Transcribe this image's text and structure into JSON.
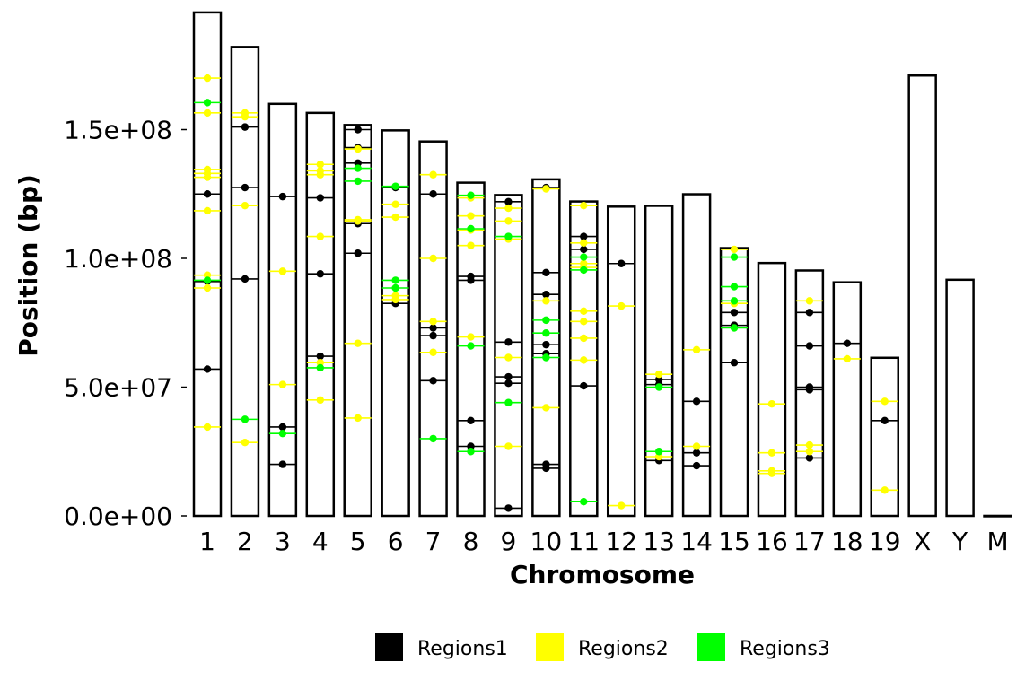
{
  "chart_data": {
    "type": "scatter",
    "xlabel": "Chromosome",
    "ylabel": "Position (bp)",
    "ylim": [
      0,
      195000000
    ],
    "yticks": [
      0,
      50000000,
      100000000,
      150000000
    ],
    "ytick_labels": [
      "0.0e+00",
      "5.0e+07",
      "1.0e+08",
      "1.5e+08"
    ],
    "categories": [
      "1",
      "2",
      "3",
      "4",
      "5",
      "6",
      "7",
      "8",
      "9",
      "10",
      "11",
      "12",
      "13",
      "14",
      "15",
      "16",
      "17",
      "18",
      "19",
      "X",
      "Y",
      "M"
    ],
    "chromosome_lengths": [
      195500000,
      182100000,
      160000000,
      156500000,
      151800000,
      149700000,
      145400000,
      129400000,
      124600000,
      130700000,
      122100000,
      120100000,
      120400000,
      124900000,
      104000000,
      98200000,
      95300000,
      90700000,
      61400000,
      171000000,
      91700000,
      16300
    ],
    "legend": {
      "position": "bottom",
      "entries": [
        "Regions1",
        "Regions2",
        "Regions3"
      ]
    },
    "grid": false,
    "series": [
      {
        "name": "Regions1",
        "color": "#000000",
        "points": [
          [
            "1",
            125000000
          ],
          [
            "1",
            57000000
          ],
          [
            "1",
            91000000
          ],
          [
            "2",
            151000000
          ],
          [
            "2",
            127500000
          ],
          [
            "2",
            92000000
          ],
          [
            "3",
            124000000
          ],
          [
            "3",
            34500000
          ],
          [
            "3",
            20000000
          ],
          [
            "4",
            123500000
          ],
          [
            "4",
            94000000
          ],
          [
            "4",
            62000000
          ],
          [
            "5",
            150000000
          ],
          [
            "5",
            143000000
          ],
          [
            "5",
            137000000
          ],
          [
            "5",
            113500000
          ],
          [
            "5",
            102000000
          ],
          [
            "6",
            127500000
          ],
          [
            "6",
            82500000
          ],
          [
            "7",
            125000000
          ],
          [
            "7",
            73000000
          ],
          [
            "7",
            70000000
          ],
          [
            "7",
            52500000
          ],
          [
            "8",
            93000000
          ],
          [
            "8",
            91500000
          ],
          [
            "8",
            37000000
          ],
          [
            "8",
            27000000
          ],
          [
            "9",
            122000000
          ],
          [
            "9",
            67500000
          ],
          [
            "9",
            54000000
          ],
          [
            "9",
            51500000
          ],
          [
            "9",
            3000000
          ],
          [
            "10",
            127500000
          ],
          [
            "10",
            94500000
          ],
          [
            "10",
            86000000
          ],
          [
            "10",
            66500000
          ],
          [
            "10",
            63000000
          ],
          [
            "10",
            20000000
          ],
          [
            "10",
            18500000
          ],
          [
            "11",
            108500000
          ],
          [
            "11",
            103500000
          ],
          [
            "11",
            50500000
          ],
          [
            "12",
            98000000
          ],
          [
            "13",
            53000000
          ],
          [
            "13",
            51000000
          ],
          [
            "13",
            21500000
          ],
          [
            "14",
            44500000
          ],
          [
            "14",
            24500000
          ],
          [
            "14",
            19500000
          ],
          [
            "15",
            79000000
          ],
          [
            "15",
            74000000
          ],
          [
            "15",
            59500000
          ],
          [
            "17",
            79000000
          ],
          [
            "17",
            66000000
          ],
          [
            "17",
            50000000
          ],
          [
            "17",
            49000000
          ],
          [
            "17",
            22500000
          ],
          [
            "18",
            67000000
          ],
          [
            "19",
            37000000
          ]
        ]
      },
      {
        "name": "Regions2",
        "color": "#ffff00",
        "points": [
          [
            "1",
            170000000
          ],
          [
            "1",
            156500000
          ],
          [
            "1",
            134500000
          ],
          [
            "1",
            133000000
          ],
          [
            "1",
            131500000
          ],
          [
            "1",
            118500000
          ],
          [
            "1",
            93500000
          ],
          [
            "1",
            88500000
          ],
          [
            "1",
            34500000
          ],
          [
            "2",
            156500000
          ],
          [
            "2",
            155000000
          ],
          [
            "2",
            120500000
          ],
          [
            "2",
            28500000
          ],
          [
            "3",
            95000000
          ],
          [
            "3",
            51000000
          ],
          [
            "4",
            136500000
          ],
          [
            "4",
            134000000
          ],
          [
            "4",
            132500000
          ],
          [
            "4",
            108500000
          ],
          [
            "4",
            59500000
          ],
          [
            "4",
            45000000
          ],
          [
            "5",
            142500000
          ],
          [
            "5",
            115000000
          ],
          [
            "5",
            114500000
          ],
          [
            "5",
            67000000
          ],
          [
            "5",
            38000000
          ],
          [
            "6",
            121000000
          ],
          [
            "6",
            116000000
          ],
          [
            "6",
            85500000
          ],
          [
            "6",
            84000000
          ],
          [
            "7",
            132500000
          ],
          [
            "7",
            100000000
          ],
          [
            "7",
            75500000
          ],
          [
            "7",
            63500000
          ],
          [
            "8",
            123500000
          ],
          [
            "8",
            116500000
          ],
          [
            "8",
            111000000
          ],
          [
            "8",
            105000000
          ],
          [
            "8",
            69500000
          ],
          [
            "9",
            119500000
          ],
          [
            "9",
            114500000
          ],
          [
            "9",
            107500000
          ],
          [
            "9",
            61500000
          ],
          [
            "9",
            27000000
          ],
          [
            "10",
            127000000
          ],
          [
            "10",
            83500000
          ],
          [
            "10",
            42000000
          ],
          [
            "11",
            120500000
          ],
          [
            "11",
            106000000
          ],
          [
            "11",
            98000000
          ],
          [
            "11",
            96500000
          ],
          [
            "11",
            79500000
          ],
          [
            "11",
            75500000
          ],
          [
            "11",
            69000000
          ],
          [
            "11",
            60500000
          ],
          [
            "12",
            81500000
          ],
          [
            "12",
            4000000
          ],
          [
            "13",
            55000000
          ],
          [
            "13",
            23000000
          ],
          [
            "14",
            64500000
          ],
          [
            "14",
            27000000
          ],
          [
            "15",
            103500000
          ],
          [
            "15",
            82500000
          ],
          [
            "16",
            43500000
          ],
          [
            "16",
            24500000
          ],
          [
            "16",
            17500000
          ],
          [
            "16",
            16500000
          ],
          [
            "17",
            83500000
          ],
          [
            "17",
            27500000
          ],
          [
            "17",
            25000000
          ],
          [
            "18",
            61000000
          ],
          [
            "19",
            44500000
          ],
          [
            "19",
            10000000
          ]
        ]
      },
      {
        "name": "Regions3",
        "color": "#00ff00",
        "points": [
          [
            "1",
            160500000
          ],
          [
            "1",
            91500000
          ],
          [
            "2",
            37500000
          ],
          [
            "3",
            32000000
          ],
          [
            "4",
            57500000
          ],
          [
            "5",
            135000000
          ],
          [
            "5",
            130000000
          ],
          [
            "6",
            128000000
          ],
          [
            "6",
            91500000
          ],
          [
            "6",
            88500000
          ],
          [
            "7",
            30000000
          ],
          [
            "8",
            124500000
          ],
          [
            "8",
            111500000
          ],
          [
            "8",
            66000000
          ],
          [
            "8",
            25000000
          ],
          [
            "9",
            108500000
          ],
          [
            "9",
            44000000
          ],
          [
            "10",
            76000000
          ],
          [
            "10",
            71000000
          ],
          [
            "10",
            61500000
          ],
          [
            "11",
            100500000
          ],
          [
            "11",
            95500000
          ],
          [
            "11",
            5500000
          ],
          [
            "13",
            50000000
          ],
          [
            "13",
            25000000
          ],
          [
            "15",
            100500000
          ],
          [
            "15",
            89000000
          ],
          [
            "15",
            83500000
          ],
          [
            "15",
            73000000
          ]
        ]
      }
    ]
  }
}
